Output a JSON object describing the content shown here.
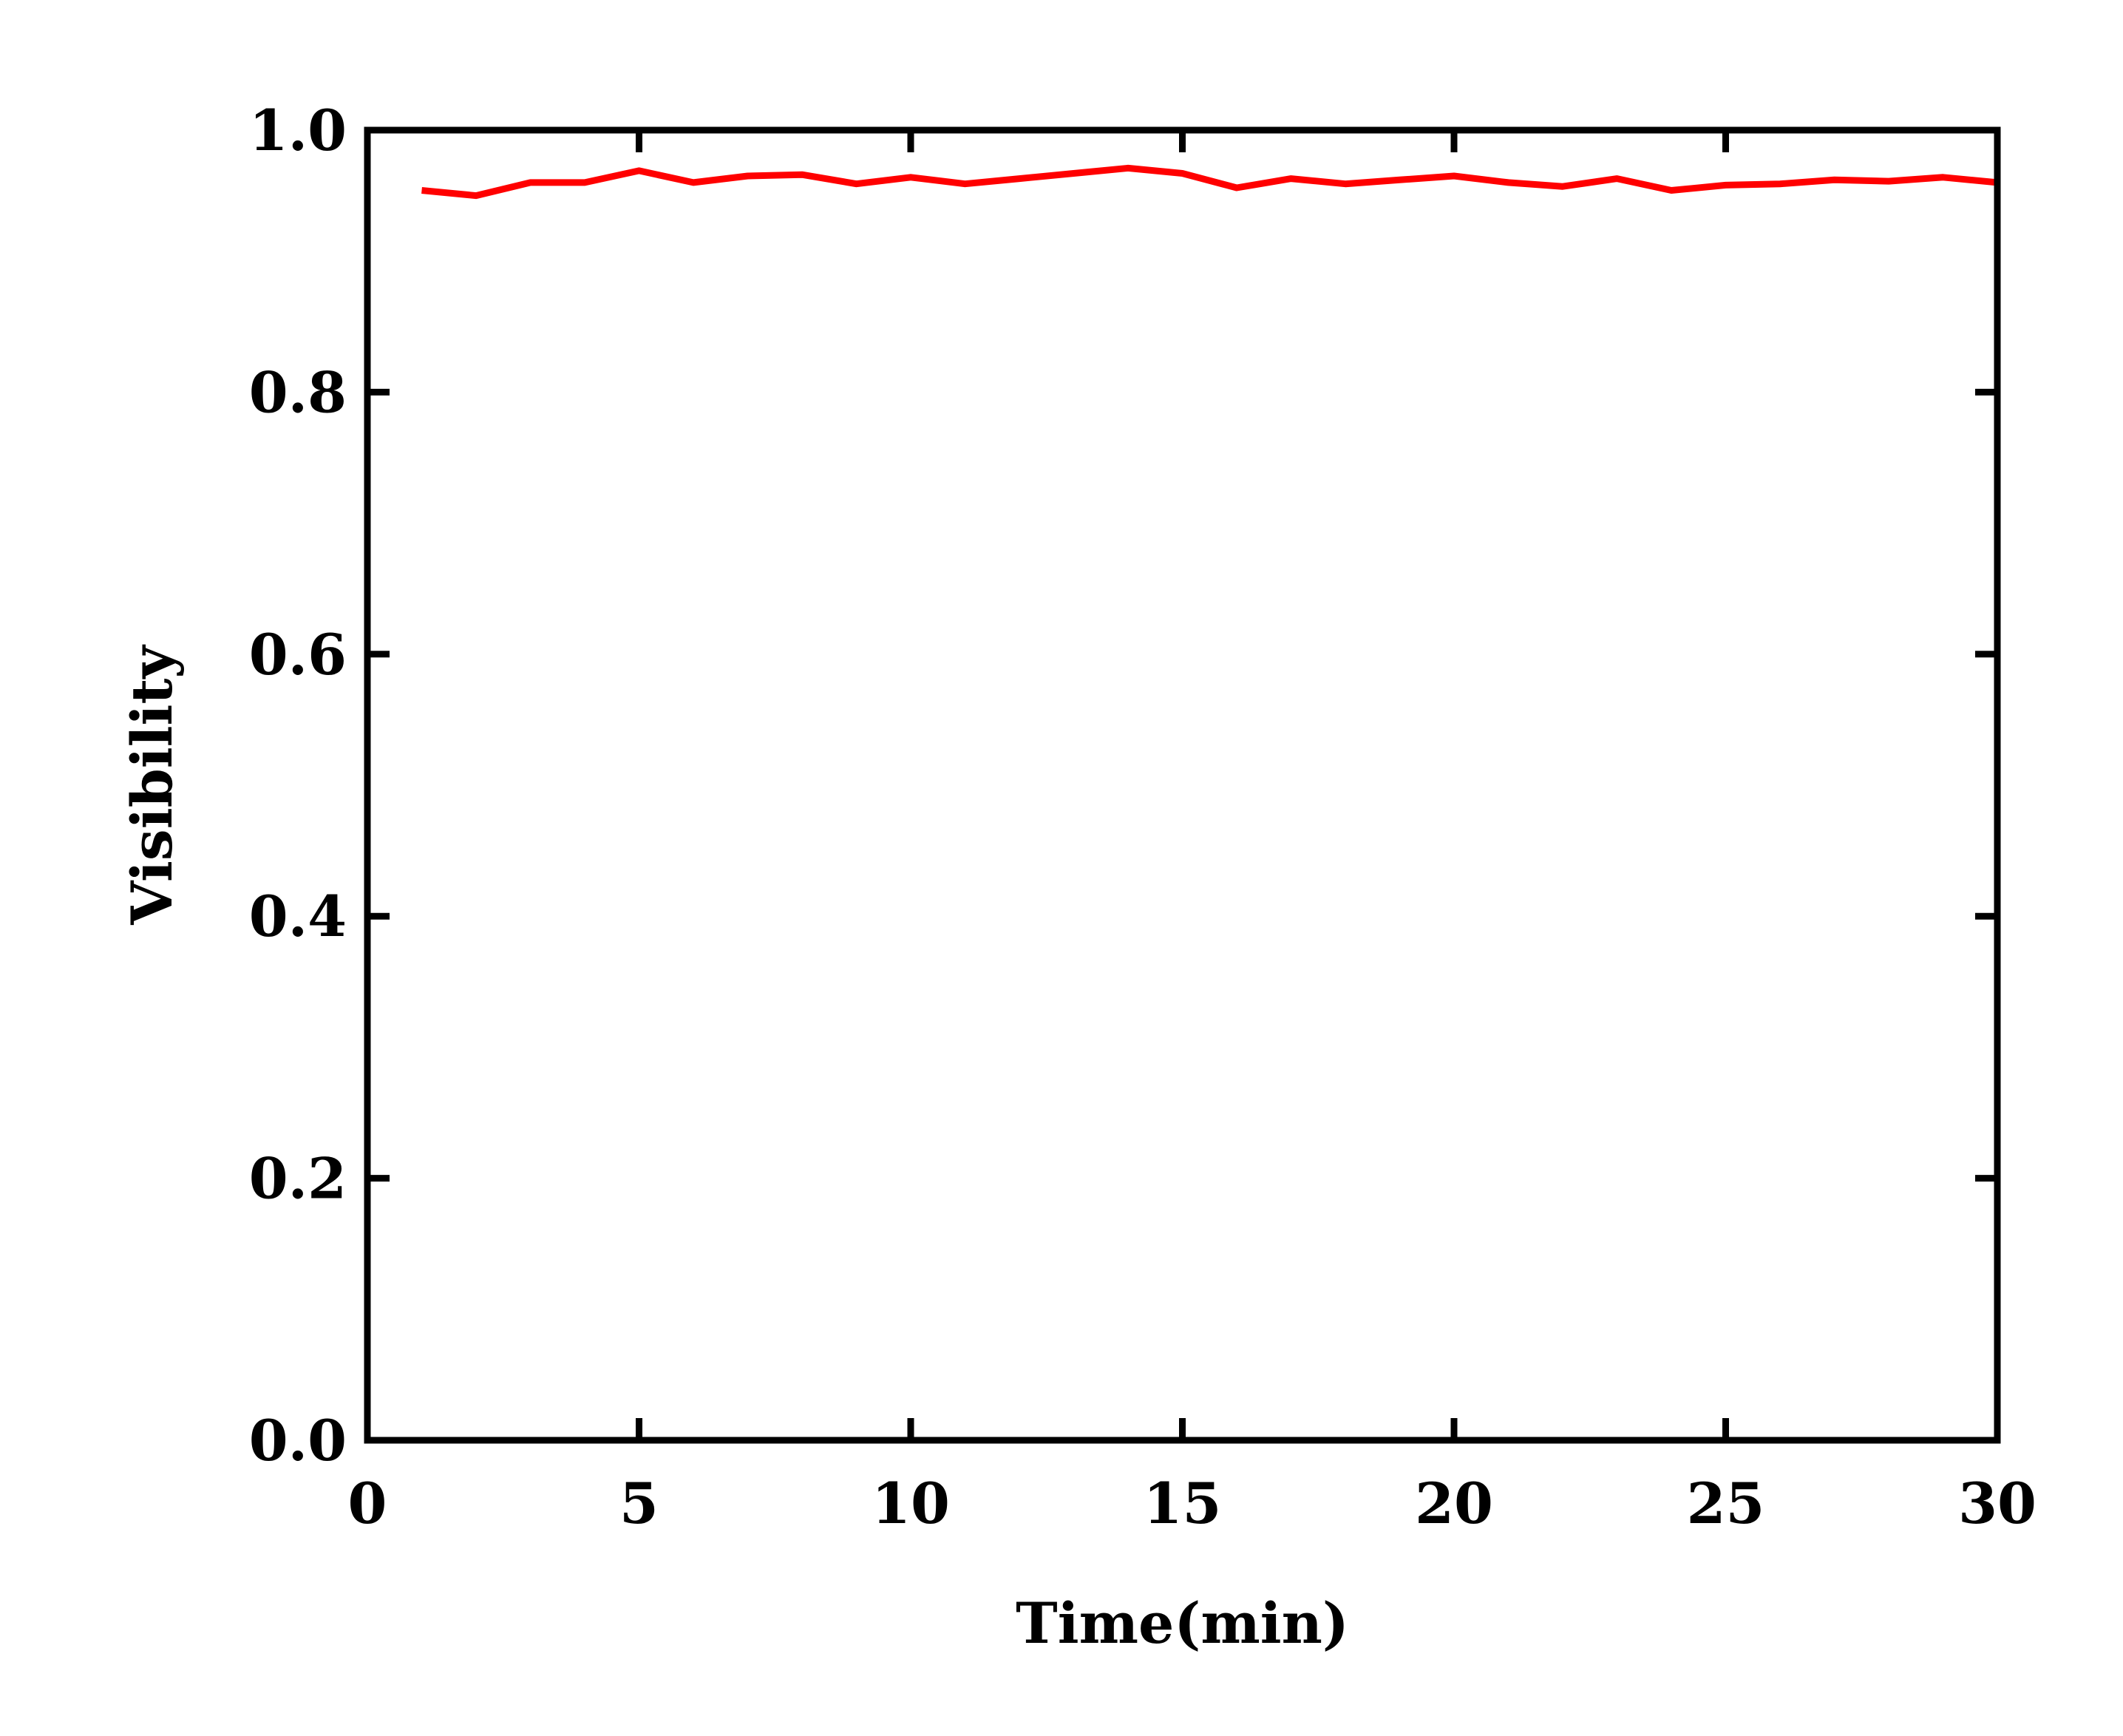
{
  "chart_data": {
    "type": "line",
    "title": "",
    "xlabel": "Time(min)",
    "ylabel": "Visibility",
    "xlim": [
      0,
      30
    ],
    "ylim": [
      0.0,
      1.0
    ],
    "xticks": [
      0,
      5,
      10,
      15,
      20,
      25,
      30
    ],
    "xtick_labels": [
      "0",
      "5",
      "10",
      "15",
      "20",
      "25",
      "30"
    ],
    "yticks": [
      0.0,
      0.2,
      0.4,
      0.6,
      0.8,
      1.0
    ],
    "ytick_labels": [
      "0.0",
      "0.2",
      "0.4",
      "0.6",
      "0.8",
      "1.0"
    ],
    "grid": false,
    "legend": "none",
    "series": [
      {
        "color": "#ff0000",
        "x": [
          1,
          2,
          3,
          4,
          5,
          6,
          7,
          8,
          9,
          10,
          11,
          12,
          13,
          14,
          15,
          16,
          17,
          18,
          19,
          20,
          21,
          22,
          23,
          24,
          25,
          26,
          27,
          28,
          29,
          30
        ],
        "y": [
          0.954,
          0.95,
          0.96,
          0.96,
          0.969,
          0.96,
          0.965,
          0.966,
          0.959,
          0.964,
          0.959,
          0.963,
          0.967,
          0.971,
          0.967,
          0.956,
          0.963,
          0.959,
          0.962,
          0.965,
          0.96,
          0.957,
          0.963,
          0.954,
          0.958,
          0.959,
          0.962,
          0.961,
          0.964,
          0.96
        ]
      }
    ]
  }
}
